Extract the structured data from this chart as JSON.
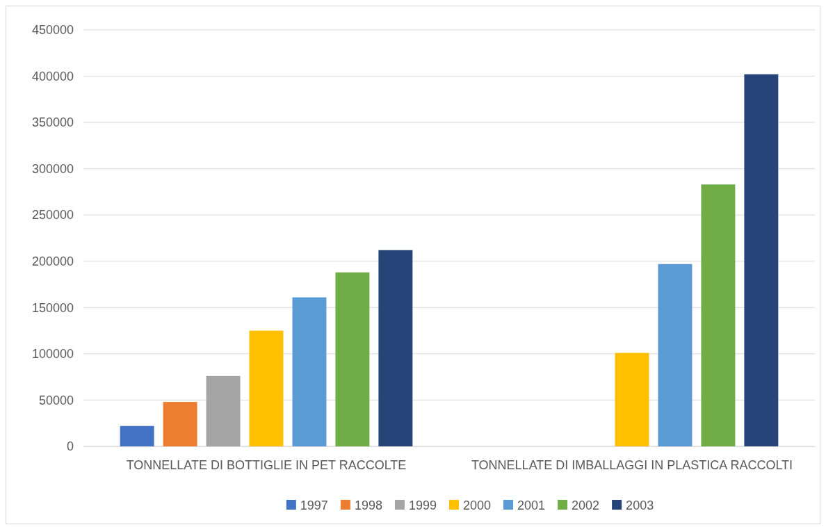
{
  "chart_data": {
    "type": "bar",
    "categories": [
      "TONNELLATE DI BOTTIGLIE IN PET RACCOLTE",
      "TONNELLATE DI IMBALLAGGI IN PLASTICA RACCOLTI"
    ],
    "series": [
      {
        "name": "1997",
        "color": "#4472c4",
        "values": [
          22000,
          null
        ]
      },
      {
        "name": "1998",
        "color": "#ed7d31",
        "values": [
          48000,
          null
        ]
      },
      {
        "name": "1999",
        "color": "#a5a5a5",
        "values": [
          76000,
          null
        ]
      },
      {
        "name": "2000",
        "color": "#ffc000",
        "values": [
          125000,
          101000
        ]
      },
      {
        "name": "2001",
        "color": "#5b9bd5",
        "values": [
          161000,
          197000
        ]
      },
      {
        "name": "2002",
        "color": "#70ad47",
        "values": [
          188000,
          283000
        ]
      },
      {
        "name": "2003",
        "color": "#264478",
        "values": [
          212000,
          402000
        ]
      }
    ],
    "ylim": [
      0,
      450000
    ],
    "yticks": [
      0,
      50000,
      100000,
      150000,
      200000,
      250000,
      300000,
      350000,
      400000,
      450000
    ],
    "grid": "y",
    "legend": "bottom"
  }
}
